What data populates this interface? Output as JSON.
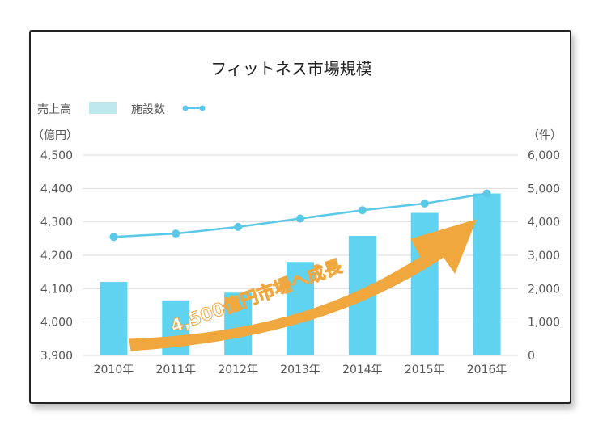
{
  "chart_data": {
    "type": "bar",
    "title": "フィットネス市場規模",
    "categories": [
      "2010年",
      "2011年",
      "2012年",
      "2013年",
      "2014年",
      "2015年",
      "2016年"
    ],
    "series": [
      {
        "name": "売上高",
        "type": "bar",
        "axis": "left",
        "values": [
          4120,
          4065,
          4088,
          4180,
          4258,
          4327,
          4385
        ]
      },
      {
        "name": "施設数",
        "type": "line",
        "axis": "right",
        "values": [
          3550,
          3650,
          3850,
          4100,
          4350,
          4550,
          4850
        ]
      }
    ],
    "y_left": {
      "unit": "（億円）",
      "ylim": [
        3900,
        4500
      ],
      "ticks": [
        "3,900",
        "4,000",
        "4,100",
        "4,200",
        "4,300",
        "4,400",
        "4,500"
      ]
    },
    "y_right": {
      "unit": "（件）",
      "ylim": [
        0,
        6000
      ],
      "ticks": [
        "0",
        "1,000",
        "2,000",
        "3,000",
        "4,000",
        "5,000",
        "6,000"
      ]
    },
    "legend": {
      "placement": "top-left",
      "items": [
        "売上高",
        "施設数"
      ]
    },
    "grid": true,
    "annotation": "4,500億円市場へ成長",
    "colors": {
      "bar": "#5fd3f0",
      "bar_legend": "#bfe8ee",
      "line": "#5bc8e8",
      "arrow": "#f0a73e"
    }
  }
}
